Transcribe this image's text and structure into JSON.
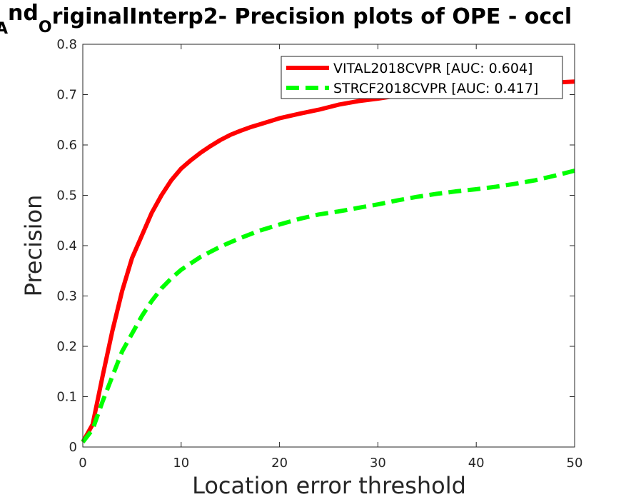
{
  "chart_data": {
    "type": "line",
    "title": {
      "seg1": "",
      "sub1": "A",
      "sup1": "nd",
      "sub2": "O",
      "rest": "riginalInterp2- Precision plots of OPE - occl"
    },
    "xlabel": "Location error threshold",
    "ylabel": "Precision",
    "xlim": [
      0,
      50
    ],
    "ylim": [
      0,
      0.8
    ],
    "xticks": [
      0,
      10,
      20,
      30,
      40,
      50
    ],
    "yticks": [
      0,
      0.1,
      0.2,
      0.3,
      0.4,
      0.5,
      0.6,
      0.7,
      0.8
    ],
    "grid": false,
    "legend_position": "top-right",
    "series": [
      {
        "name": "VITAL2018CVPR [AUC: 0.604]",
        "color": "#ff0000",
        "style": "solid",
        "x": [
          0,
          1,
          2,
          3,
          4,
          5,
          6,
          7,
          8,
          9,
          10,
          11,
          12,
          13,
          14,
          15,
          16,
          17,
          18,
          19,
          20,
          22,
          24,
          26,
          28,
          30,
          32,
          34,
          36,
          38,
          40,
          42,
          44,
          46,
          48,
          50
        ],
        "values": [
          0.01,
          0.045,
          0.14,
          0.23,
          0.31,
          0.375,
          0.42,
          0.465,
          0.5,
          0.53,
          0.553,
          0.57,
          0.585,
          0.598,
          0.61,
          0.62,
          0.628,
          0.635,
          0.641,
          0.647,
          0.653,
          0.662,
          0.67,
          0.68,
          0.687,
          0.692,
          0.698,
          0.703,
          0.707,
          0.711,
          0.714,
          0.717,
          0.72,
          0.722,
          0.724,
          0.726
        ]
      },
      {
        "name": "STRCF2018CVPR [AUC: 0.417]",
        "color": "#00ff00",
        "style": "dashed",
        "x": [
          0,
          1,
          2,
          3,
          4,
          5,
          6,
          7,
          8,
          9,
          10,
          12,
          14,
          16,
          18,
          20,
          22,
          24,
          26,
          28,
          30,
          32,
          34,
          36,
          38,
          40,
          42,
          44,
          46,
          48,
          50
        ],
        "values": [
          0.01,
          0.035,
          0.09,
          0.14,
          0.19,
          0.225,
          0.26,
          0.29,
          0.315,
          0.335,
          0.352,
          0.378,
          0.398,
          0.415,
          0.43,
          0.442,
          0.453,
          0.462,
          0.468,
          0.475,
          0.482,
          0.49,
          0.497,
          0.503,
          0.508,
          0.512,
          0.517,
          0.523,
          0.53,
          0.539,
          0.549
        ]
      }
    ]
  }
}
